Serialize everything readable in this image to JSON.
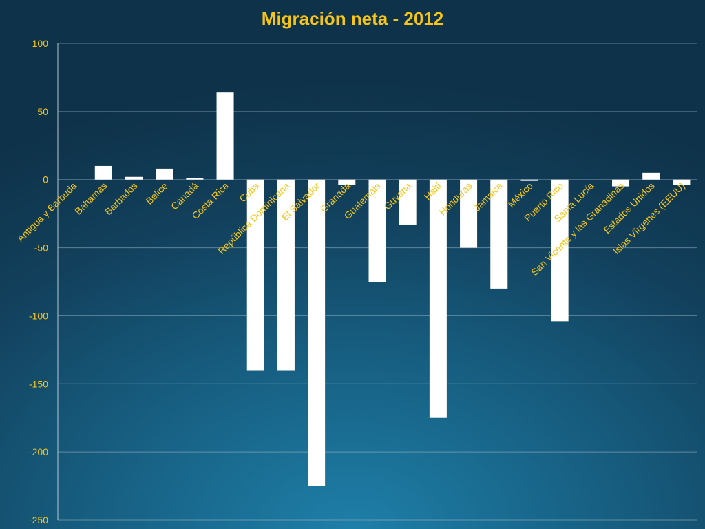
{
  "chart_data": {
    "type": "bar",
    "title": "Migración neta - 2012",
    "xlabel": "",
    "ylabel": "",
    "ylim": [
      -250,
      100
    ],
    "yticks": [
      100,
      50,
      0,
      -50,
      -100,
      -150,
      -200,
      -250
    ],
    "grid": true,
    "legend": "none",
    "categories": [
      "Antigua y Barbuda",
      "Bahamas",
      "Barbados",
      "Belice",
      "Canadá",
      "Costa Rica",
      "Cuba",
      "República Dominicana",
      "El Salvador",
      "Granada",
      "Guatemala",
      "Guyana",
      "Haití",
      "Honduras",
      "Jamaica",
      "México",
      "Puerto Rico",
      "Santa Lucía",
      "San Vicente y las Granadinas",
      "Estados Unidos",
      "Islas Vírgenes (EEUU)"
    ],
    "values": [
      0,
      10,
      2,
      8,
      1,
      64,
      -140,
      -140,
      -225,
      -4,
      -75,
      -33,
      -175,
      -50,
      -80,
      -1,
      -104,
      0,
      -5,
      5,
      -4
    ]
  },
  "colors": {
    "bar": "#ffffff",
    "text": "#f5c518",
    "grid": "#9fb6c4"
  }
}
